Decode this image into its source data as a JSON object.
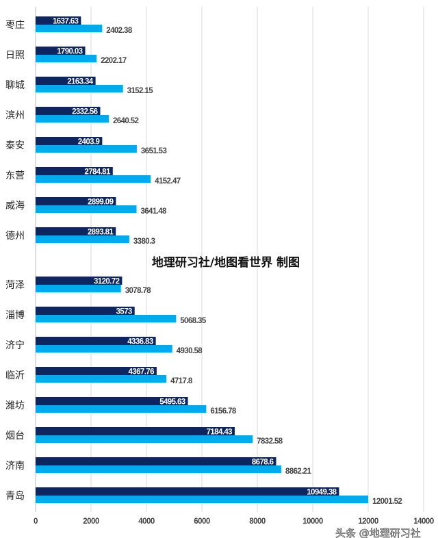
{
  "chart_data": {
    "type": "bar",
    "orientation": "horizontal",
    "categories": [
      "枣庄",
      "日照",
      "聊城",
      "滨州",
      "泰安",
      "东营",
      "威海",
      "德州",
      "菏泽",
      "淄博",
      "济宁",
      "临沂",
      "潍坊",
      "烟台",
      "济南",
      "青岛"
    ],
    "series": [
      {
        "values": [
          1637.63,
          1790.03,
          2163.34,
          2332.56,
          2403.9,
          2784.81,
          2899.09,
          2893.81,
          3120.72,
          3573,
          4336.83,
          4367.76,
          5495.63,
          7184.43,
          8678.6,
          10949.38
        ],
        "color": "#0d2660"
      },
      {
        "values": [
          2402.38,
          2202.17,
          3152.15,
          2640.52,
          3651.53,
          4152.47,
          3641.48,
          3380.3,
          3078.78,
          5068.35,
          4930.58,
          4717.8,
          6156.78,
          7832.58,
          8862.21,
          12001.52
        ],
        "color": "#00aaee"
      }
    ],
    "xlim": [
      0,
      14000
    ],
    "xticks": [
      "0",
      "2000",
      "4000",
      "6000",
      "8000",
      "10000",
      "12000",
      "14000"
    ],
    "grid": true,
    "legend": "none",
    "annotation": "地理研习社/地图看世界  制图"
  },
  "watermark": "头条 @地理研习社"
}
